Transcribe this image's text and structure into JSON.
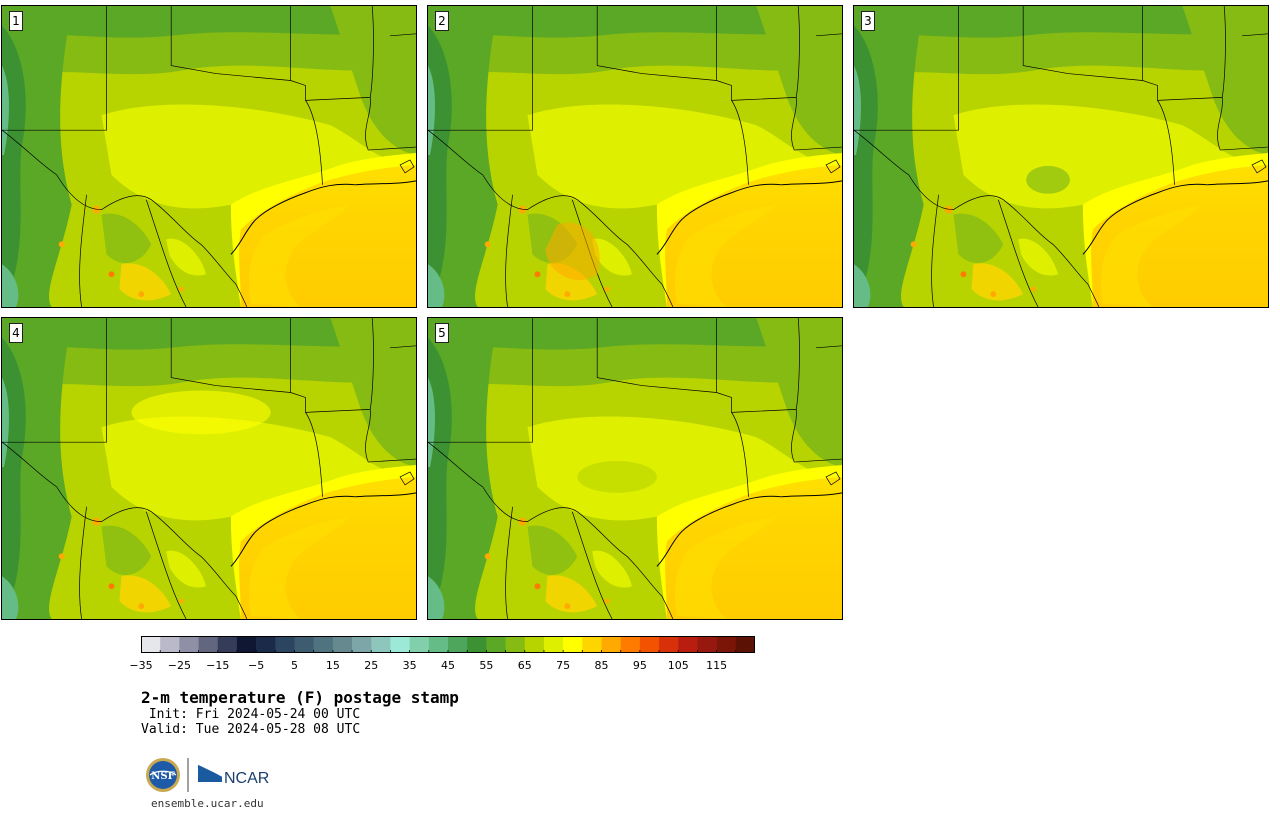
{
  "panels": [
    {
      "label": "1"
    },
    {
      "label": "2"
    },
    {
      "label": "3"
    },
    {
      "label": "4"
    },
    {
      "label": "5"
    }
  ],
  "colorbar": {
    "colors": [
      "#e6e7ea",
      "#b9b9c9",
      "#8f90a5",
      "#62667f",
      "#343c5a",
      "#0f1733",
      "#1a2a48",
      "#2b4560",
      "#3e5c70",
      "#507380",
      "#66898f",
      "#7ca6a8",
      "#8cc6bd",
      "#9ce9d7",
      "#82d0ab",
      "#66bc86",
      "#4ea55c",
      "#3c9232",
      "#5ba726",
      "#86bb14",
      "#b7d400",
      "#def000",
      "#ffff00",
      "#ffd500",
      "#ffaa00",
      "#ff7b00",
      "#f35300",
      "#d8310a",
      "#b81d0f",
      "#97180f",
      "#7a1508",
      "#5b1104"
    ],
    "tick_labels": [
      "−35",
      "−25",
      "−15",
      "−5",
      "5",
      "15",
      "25",
      "35",
      "45",
      "55",
      "65",
      "75",
      "85",
      "95",
      "105",
      "115"
    ]
  },
  "title": "2-m temperature (F) postage stamp",
  "init": " Init: Fri 2024-05-24 00 UTC",
  "valid": "Valid: Tue 2024-05-28 08 UTC",
  "logos": {
    "nsf": "NSF",
    "ncar": "NCAR"
  },
  "url": "ensemble.ucar.edu"
}
